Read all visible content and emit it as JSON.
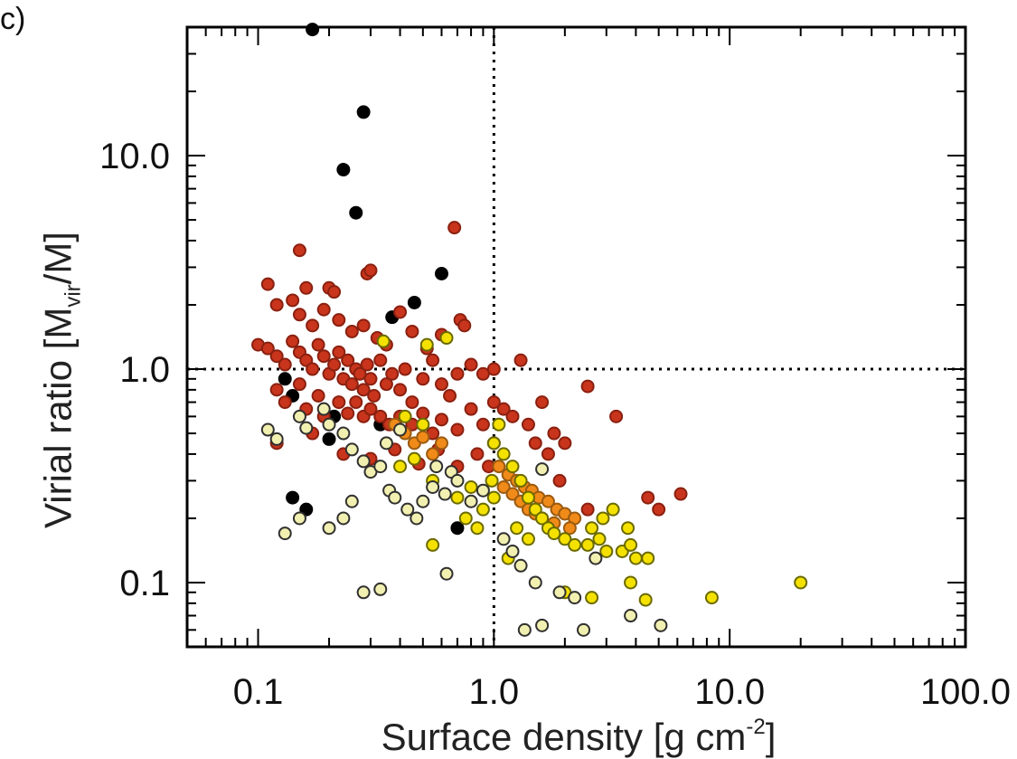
{
  "panel": {
    "label": "c)"
  },
  "chart_data": {
    "type": "scatter",
    "title": "",
    "xlabel": "Surface density [g cm",
    "xlabel_sup": "-2",
    "xlabel_close": "]",
    "ylabel": "Virial ratio [M",
    "ylabel_sub": "vir",
    "ylabel_close": "/M]",
    "x_scale": "log",
    "y_scale": "log",
    "xlim": [
      0.05,
      100.0
    ],
    "ylim": [
      0.05,
      40.0
    ],
    "x_ticks": [
      {
        "value": 0.1,
        "label": "0.1"
      },
      {
        "value": 1.0,
        "label": "1.0"
      },
      {
        "value": 10.0,
        "label": "10.0"
      },
      {
        "value": 100.0,
        "label": "100.0"
      }
    ],
    "y_ticks": [
      {
        "value": 0.1,
        "label": "0.1"
      },
      {
        "value": 1.0,
        "label": "1.0"
      },
      {
        "value": 10.0,
        "label": "10.0"
      }
    ],
    "reference_lines": [
      {
        "axis": "x",
        "value": 1.0,
        "style": "dotted"
      },
      {
        "axis": "y",
        "value": 1.0,
        "style": "dotted"
      }
    ],
    "colors": {
      "black": "#000000",
      "red": "#c8351c",
      "orange": "#f08a18",
      "yellow": "#f5e100",
      "pale": "#f2f0b0"
    },
    "series": [
      {
        "name": "black",
        "fill": "#000000",
        "edge": "#000000",
        "points": [
          [
            0.17,
            39.0
          ],
          [
            0.28,
            16.0
          ],
          [
            0.23,
            8.6
          ],
          [
            0.26,
            5.4
          ],
          [
            0.6,
            2.8
          ],
          [
            0.46,
            2.05
          ],
          [
            0.37,
            1.75
          ],
          [
            0.13,
            0.9
          ],
          [
            0.14,
            0.75
          ],
          [
            0.2,
            0.47
          ],
          [
            0.14,
            0.25
          ],
          [
            0.16,
            0.22
          ],
          [
            0.7,
            0.18
          ],
          [
            0.33,
            0.55
          ],
          [
            0.21,
            0.6
          ]
        ]
      },
      {
        "name": "red",
        "fill": "#c8351c",
        "edge": "#8a2010",
        "points": [
          [
            0.68,
            4.6
          ],
          [
            0.15,
            3.6
          ],
          [
            0.11,
            2.5
          ],
          [
            0.16,
            2.4
          ],
          [
            0.2,
            2.4
          ],
          [
            0.21,
            2.3
          ],
          [
            0.29,
            2.8
          ],
          [
            0.3,
            2.9
          ],
          [
            0.12,
            2.0
          ],
          [
            0.14,
            2.1
          ],
          [
            0.15,
            1.8
          ],
          [
            0.17,
            1.6
          ],
          [
            0.19,
            1.9
          ],
          [
            0.22,
            1.7
          ],
          [
            0.25,
            1.5
          ],
          [
            0.28,
            1.6
          ],
          [
            0.32,
            1.4
          ],
          [
            0.35,
            1.3
          ],
          [
            0.4,
            1.85
          ],
          [
            0.45,
            1.5
          ],
          [
            0.52,
            1.25
          ],
          [
            0.6,
            1.45
          ],
          [
            0.72,
            1.7
          ],
          [
            0.75,
            1.6
          ],
          [
            0.1,
            1.3
          ],
          [
            0.11,
            1.25
          ],
          [
            0.12,
            1.15
          ],
          [
            0.13,
            1.05
          ],
          [
            0.14,
            1.35
          ],
          [
            0.15,
            1.2
          ],
          [
            0.16,
            1.1
          ],
          [
            0.17,
            1.0
          ],
          [
            0.18,
            1.3
          ],
          [
            0.19,
            1.15
          ],
          [
            0.2,
            0.95
          ],
          [
            0.21,
            1.05
          ],
          [
            0.22,
            1.2
          ],
          [
            0.23,
            0.9
          ],
          [
            0.24,
            1.1
          ],
          [
            0.25,
            0.85
          ],
          [
            0.26,
            1.0
          ],
          [
            0.27,
            0.95
          ],
          [
            0.28,
            0.8
          ],
          [
            0.29,
            1.05
          ],
          [
            0.3,
            0.9
          ],
          [
            0.31,
            0.75
          ],
          [
            0.33,
            1.1
          ],
          [
            0.35,
            0.85
          ],
          [
            0.37,
            0.95
          ],
          [
            0.4,
            0.8
          ],
          [
            0.42,
            1.0
          ],
          [
            0.45,
            0.7
          ],
          [
            0.5,
            0.9
          ],
          [
            0.55,
            1.1
          ],
          [
            0.6,
            0.85
          ],
          [
            0.65,
            0.75
          ],
          [
            0.7,
            0.95
          ],
          [
            0.8,
            1.05
          ],
          [
            0.9,
            0.95
          ],
          [
            1.0,
            1.0
          ],
          [
            1.3,
            1.1
          ],
          [
            0.12,
            0.8
          ],
          [
            0.13,
            0.7
          ],
          [
            0.15,
            0.85
          ],
          [
            0.16,
            0.65
          ],
          [
            0.18,
            0.75
          ],
          [
            0.19,
            0.6
          ],
          [
            0.22,
            0.7
          ],
          [
            0.24,
            0.62
          ],
          [
            0.26,
            0.7
          ],
          [
            0.28,
            0.6
          ],
          [
            0.3,
            0.65
          ],
          [
            0.33,
            0.6
          ],
          [
            0.36,
            0.55
          ],
          [
            0.4,
            0.6
          ],
          [
            0.45,
            0.55
          ],
          [
            0.5,
            0.62
          ],
          [
            0.55,
            0.5
          ],
          [
            0.6,
            0.58
          ],
          [
            0.7,
            0.52
          ],
          [
            0.8,
            0.65
          ],
          [
            0.9,
            0.55
          ],
          [
            1.0,
            0.7
          ],
          [
            1.1,
            0.65
          ],
          [
            1.2,
            0.6
          ],
          [
            1.4,
            0.55
          ],
          [
            1.6,
            0.7
          ],
          [
            1.8,
            0.5
          ],
          [
            2.0,
            0.45
          ],
          [
            1.5,
            0.45
          ],
          [
            1.7,
            0.4
          ],
          [
            2.5,
            0.83
          ],
          [
            3.3,
            0.6
          ],
          [
            1.9,
            0.3
          ],
          [
            2.5,
            0.22
          ],
          [
            4.5,
            0.25
          ],
          [
            6.2,
            0.26
          ],
          [
            5.0,
            0.22
          ],
          [
            0.12,
            0.45
          ],
          [
            0.17,
            0.5
          ],
          [
            0.23,
            0.4
          ],
          [
            0.3,
            0.38
          ],
          [
            0.38,
            0.42
          ],
          [
            0.48,
            0.36
          ],
          [
            0.58,
            0.42
          ],
          [
            0.7,
            0.35
          ],
          [
            0.85,
            0.4
          ],
          [
            1.0,
            0.45
          ],
          [
            0.95,
            0.35
          ]
        ]
      },
      {
        "name": "orange",
        "fill": "#f08a18",
        "edge": "#9a5a10",
        "points": [
          [
            0.38,
            0.55
          ],
          [
            0.42,
            0.5
          ],
          [
            0.46,
            0.45
          ],
          [
            0.5,
            0.48
          ],
          [
            0.55,
            0.4
          ],
          [
            0.6,
            0.45
          ],
          [
            1.05,
            0.35
          ],
          [
            1.15,
            0.32
          ],
          [
            1.25,
            0.3
          ],
          [
            1.35,
            0.28
          ],
          [
            1.45,
            0.27
          ],
          [
            1.55,
            0.25
          ],
          [
            1.7,
            0.24
          ],
          [
            1.85,
            0.22
          ],
          [
            2.0,
            0.21
          ],
          [
            2.2,
            0.2
          ],
          [
            1.1,
            0.28
          ],
          [
            1.2,
            0.26
          ],
          [
            1.3,
            0.24
          ],
          [
            1.4,
            0.22
          ],
          [
            1.5,
            0.21
          ],
          [
            1.6,
            0.2
          ],
          [
            1.8,
            0.19
          ],
          [
            2.1,
            0.18
          ]
        ]
      },
      {
        "name": "yellow",
        "fill": "#f5e100",
        "edge": "#6a6a00",
        "points": [
          [
            0.63,
            1.4
          ],
          [
            0.52,
            1.3
          ],
          [
            0.34,
            1.35
          ],
          [
            0.42,
            0.6
          ],
          [
            0.5,
            0.55
          ],
          [
            0.46,
            0.38
          ],
          [
            0.4,
            0.35
          ],
          [
            0.55,
            0.3
          ],
          [
            0.7,
            0.25
          ],
          [
            0.76,
            0.2
          ],
          [
            0.85,
            0.18
          ],
          [
            0.98,
            0.3
          ],
          [
            1.0,
            0.45
          ],
          [
            1.05,
            0.55
          ],
          [
            1.1,
            0.4
          ],
          [
            1.2,
            0.35
          ],
          [
            1.3,
            0.3
          ],
          [
            1.4,
            0.25
          ],
          [
            1.5,
            0.22
          ],
          [
            1.6,
            0.2
          ],
          [
            1.7,
            0.18
          ],
          [
            1.8,
            0.17
          ],
          [
            2.0,
            0.16
          ],
          [
            2.2,
            0.15
          ],
          [
            2.5,
            0.15
          ],
          [
            2.8,
            0.16
          ],
          [
            3.0,
            0.14
          ],
          [
            3.5,
            0.14
          ],
          [
            3.8,
            0.15
          ],
          [
            4.0,
            0.13
          ],
          [
            4.5,
            0.13
          ],
          [
            0.55,
            0.15
          ],
          [
            1.15,
            0.13
          ],
          [
            1.25,
            0.18
          ],
          [
            1.4,
            0.16
          ],
          [
            2.6,
            0.18
          ],
          [
            2.9,
            0.2
          ],
          [
            3.7,
            0.18
          ],
          [
            3.2,
            0.22
          ],
          [
            8.4,
            0.085
          ],
          [
            20.0,
            0.1
          ],
          [
            2.6,
            0.085
          ],
          [
            4.4,
            0.083
          ],
          [
            2.0,
            0.09
          ],
          [
            3.8,
            0.1
          ],
          [
            1.0,
            0.25
          ],
          [
            0.9,
            0.22
          ],
          [
            0.8,
            0.28
          ]
        ]
      },
      {
        "name": "pale",
        "fill": "#f2f0b0",
        "edge": "#303030",
        "points": [
          [
            0.11,
            0.52
          ],
          [
            0.12,
            0.47
          ],
          [
            0.15,
            0.6
          ],
          [
            0.16,
            0.53
          ],
          [
            0.19,
            0.65
          ],
          [
            0.2,
            0.55
          ],
          [
            0.23,
            0.5
          ],
          [
            0.25,
            0.42
          ],
          [
            0.28,
            0.37
          ],
          [
            0.3,
            0.33
          ],
          [
            0.33,
            0.35
          ],
          [
            0.36,
            0.27
          ],
          [
            0.38,
            0.25
          ],
          [
            0.43,
            0.22
          ],
          [
            0.47,
            0.2
          ],
          [
            0.5,
            0.24
          ],
          [
            0.55,
            0.28
          ],
          [
            0.62,
            0.26
          ],
          [
            0.66,
            0.33
          ],
          [
            0.7,
            0.3
          ],
          [
            0.8,
            0.24
          ],
          [
            0.9,
            0.27
          ],
          [
            1.1,
            0.16
          ],
          [
            1.2,
            0.14
          ],
          [
            1.3,
            0.12
          ],
          [
            1.5,
            0.1
          ],
          [
            1.6,
            0.34
          ],
          [
            1.9,
            0.09
          ],
          [
            2.2,
            0.085
          ],
          [
            2.4,
            0.06
          ],
          [
            2.7,
            0.13
          ],
          [
            3.8,
            0.07
          ],
          [
            5.1,
            0.063
          ],
          [
            1.6,
            0.063
          ],
          [
            1.35,
            0.06
          ],
          [
            0.13,
            0.17
          ],
          [
            0.15,
            0.2
          ],
          [
            0.2,
            0.18
          ],
          [
            0.23,
            0.2
          ],
          [
            0.25,
            0.24
          ],
          [
            0.28,
            0.09
          ],
          [
            0.33,
            0.093
          ],
          [
            0.63,
            0.11
          ],
          [
            0.4,
            0.52
          ],
          [
            0.35,
            0.45
          ],
          [
            0.57,
            0.35
          ]
        ]
      }
    ]
  }
}
